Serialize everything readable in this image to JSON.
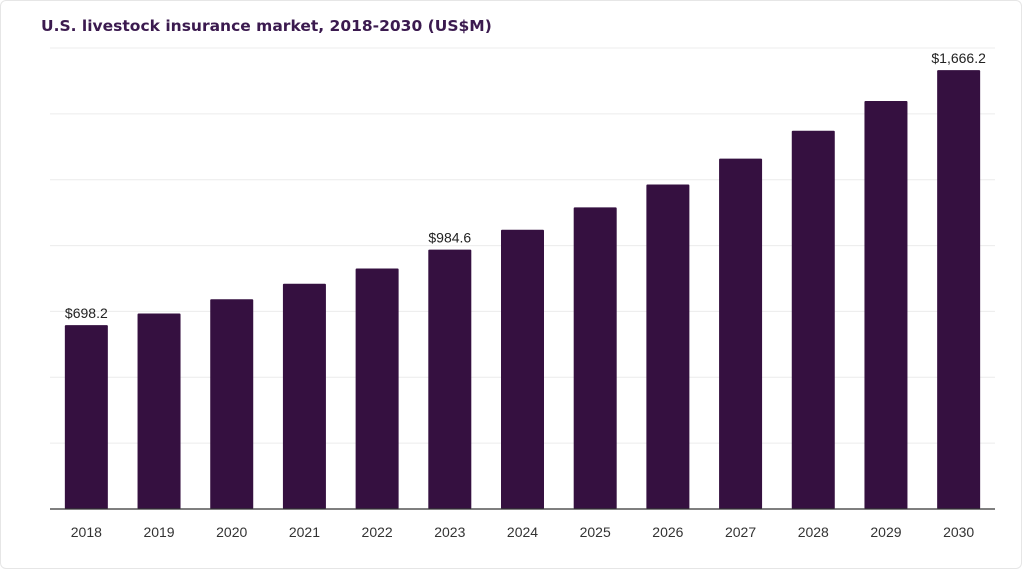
{
  "chart_data": {
    "type": "bar",
    "title": "U.S. livestock insurance market, 2018-2030 (US$M)",
    "xlabel": "",
    "ylabel": "",
    "categories": [
      "2018",
      "2019",
      "2020",
      "2021",
      "2022",
      "2023",
      "2024",
      "2025",
      "2026",
      "2027",
      "2028",
      "2029",
      "2030"
    ],
    "values": [
      698.2,
      742,
      796,
      855,
      913,
      984.6,
      1060,
      1145,
      1232,
      1330,
      1436,
      1549,
      1666.2
    ],
    "data_labels": [
      {
        "index": 0,
        "text": "$698.2"
      },
      {
        "index": 5,
        "text": "$984.6"
      },
      {
        "index": 12,
        "text": "$1,666.2"
      }
    ],
    "ylim": [
      0,
      1750
    ],
    "grid": true,
    "legend": "none",
    "bar_color": "#351040"
  }
}
